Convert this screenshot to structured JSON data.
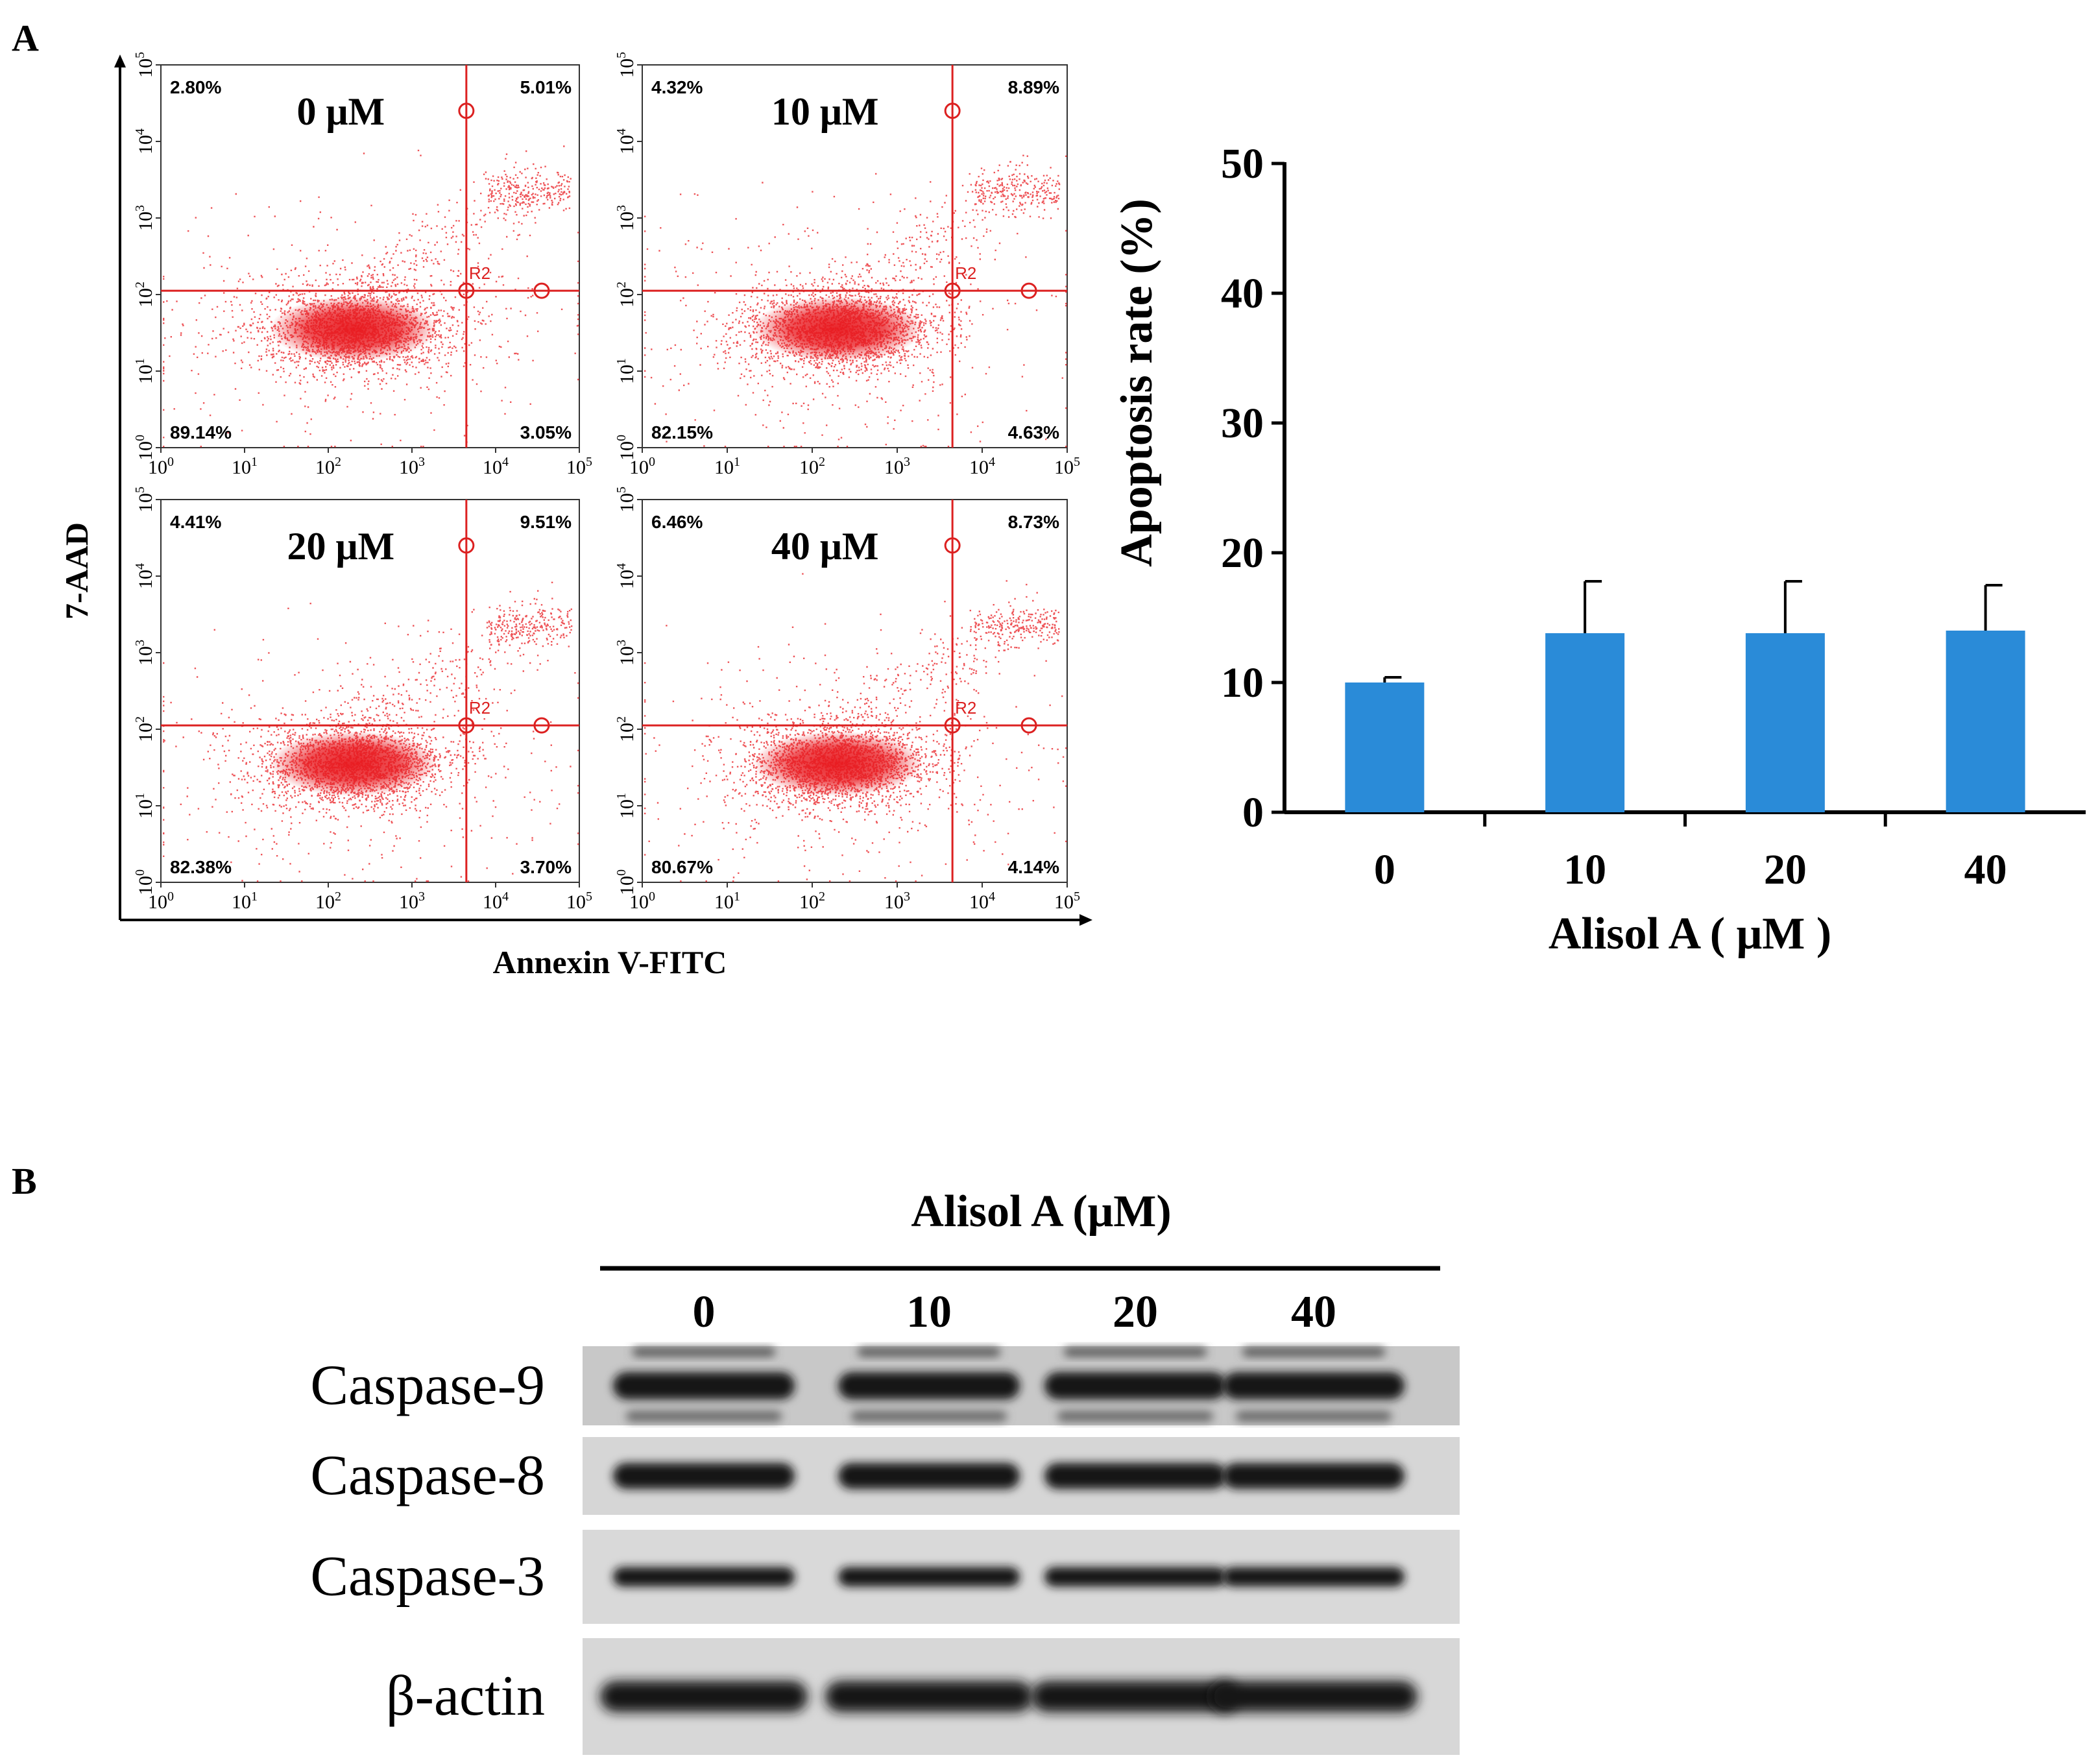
{
  "panels": {
    "a": {
      "label": "A"
    },
    "b": {
      "label": "B"
    }
  },
  "flow": {
    "xlabel": "Annexin V-FITC",
    "ylabel": "7-AAD",
    "gate_label": "R2",
    "tick_base": "10",
    "tick_exps": [
      "0",
      "1",
      "2",
      "3",
      "4",
      "5"
    ],
    "plots": [
      {
        "title": "0 μM",
        "ul": "2.80%",
        "ur": "5.01%",
        "ll": "89.14%",
        "lr": "3.05%"
      },
      {
        "title": "10 μM",
        "ul": "4.32%",
        "ur": "8.89%",
        "ll": "82.15%",
        "lr": "4.63%"
      },
      {
        "title": "20 μM",
        "ul": "4.41%",
        "ur": "9.51%",
        "ll": "82.38%",
        "lr": "3.70%"
      },
      {
        "title": "40 μM",
        "ul": "6.46%",
        "ur": "8.73%",
        "ll": "80.67%",
        "lr": "4.14%"
      }
    ],
    "colors": {
      "dots": "#e8191f",
      "gate": "#dc2020"
    }
  },
  "chart_data": {
    "type": "bar",
    "title": "",
    "categories": [
      "0",
      "10",
      "20",
      "40"
    ],
    "values": [
      10,
      13.8,
      13.8,
      14
    ],
    "errors": [
      0.4,
      4.0,
      4.0,
      3.5
    ],
    "ylim": [
      0,
      50
    ],
    "yticks": [
      "0",
      "10",
      "20",
      "30",
      "40",
      "50"
    ],
    "xlabel": "Alisol A ( μM )",
    "ylabel": "Apoptosis rate (%)",
    "bar_color": "#2a8bd8",
    "grid": false
  },
  "western": {
    "title": "Alisol A (μM)",
    "lanes": [
      "0",
      "10",
      "20",
      "40"
    ],
    "rows": [
      {
        "label": "Caspase-9"
      },
      {
        "label": "Caspase-8"
      },
      {
        "label": "Caspase-3"
      },
      {
        "label": "β-actin"
      }
    ]
  }
}
